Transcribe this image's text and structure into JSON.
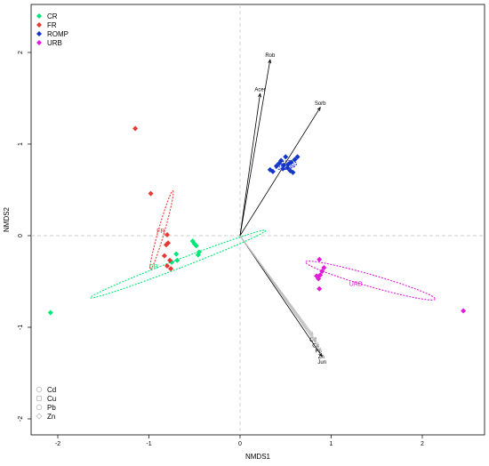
{
  "chart_data": {
    "type": "scatter",
    "title": "",
    "xlabel": "NMDS1",
    "ylabel": "NMDS2",
    "xlim": [
      -2.45,
      2.7
    ],
    "ylim": [
      -2.2,
      2.3
    ],
    "x_ticks": [
      -2,
      -1,
      0,
      1,
      2
    ],
    "y_ticks": [
      -2,
      -1,
      0,
      1,
      2
    ],
    "reference_lines": {
      "x": 0,
      "y": 0
    },
    "legend_position": "top-left",
    "series": [
      {
        "name": "CR",
        "color": "#00E676",
        "marker": "diamond",
        "points": [
          {
            "x": -2.08,
            "y": -0.84
          },
          {
            "x": -0.52,
            "y": -0.06
          },
          {
            "x": -0.5,
            "y": -0.09
          },
          {
            "x": -0.48,
            "y": -0.11
          },
          {
            "x": -0.7,
            "y": -0.2
          },
          {
            "x": -0.69,
            "y": -0.27
          },
          {
            "x": -0.45,
            "y": -0.18
          },
          {
            "x": -0.46,
            "y": -0.21
          },
          {
            "x": -0.75,
            "y": -0.29
          }
        ],
        "ellipse": {
          "cx": -0.68,
          "cy": -0.31,
          "semi_major": 1.03,
          "semi_minor": 0.047,
          "angle_deg": 21,
          "label": "CR",
          "label_x": -0.95,
          "label_y": -0.34
        }
      },
      {
        "name": "FR",
        "color": "#E53935",
        "marker": "diamond",
        "points": [
          {
            "x": -1.15,
            "y": 1.17
          },
          {
            "x": -0.98,
            "y": 0.46
          },
          {
            "x": -0.8,
            "y": 0.01
          },
          {
            "x": -0.79,
            "y": -0.08
          },
          {
            "x": -0.81,
            "y": -0.1
          },
          {
            "x": -0.83,
            "y": -0.22
          },
          {
            "x": -0.77,
            "y": -0.27
          },
          {
            "x": -0.8,
            "y": -0.33
          },
          {
            "x": -0.76,
            "y": -0.36
          }
        ],
        "ellipse": {
          "cx": -0.86,
          "cy": 0.06,
          "semi_major": 0.45,
          "semi_minor": 0.034,
          "angle_deg": 74,
          "label": "FR",
          "label_x": -0.87,
          "label_y": 0.05
        }
      },
      {
        "name": "ROMP",
        "color": "#1436C8",
        "marker": "diamond",
        "points": [
          {
            "x": 0.33,
            "y": 0.72
          },
          {
            "x": 0.36,
            "y": 0.7
          },
          {
            "x": 0.4,
            "y": 0.76
          },
          {
            "x": 0.45,
            "y": 0.82
          },
          {
            "x": 0.5,
            "y": 0.86
          },
          {
            "x": 0.53,
            "y": 0.78
          },
          {
            "x": 0.56,
            "y": 0.8
          },
          {
            "x": 0.6,
            "y": 0.83
          },
          {
            "x": 0.63,
            "y": 0.86
          },
          {
            "x": 0.47,
            "y": 0.73
          },
          {
            "x": 0.58,
            "y": 0.69
          },
          {
            "x": 0.52,
            "y": 0.74
          },
          {
            "x": 0.48,
            "y": 0.77
          },
          {
            "x": 0.43,
            "y": 0.79
          },
          {
            "x": 0.55,
            "y": 0.71
          }
        ],
        "ellipse": {
          "cx": 0.5,
          "cy": 0.77,
          "semi_major": 0.12,
          "semi_minor": 0.045,
          "angle_deg": 8,
          "label": "ROMP",
          "label_x": 0.5,
          "label_y": 0.76
        }
      },
      {
        "name": "URB",
        "color": "#E11BD6",
        "marker": "diamond",
        "points": [
          {
            "x": 2.45,
            "y": -0.82
          },
          {
            "x": 0.87,
            "y": -0.26
          },
          {
            "x": 0.92,
            "y": -0.35
          },
          {
            "x": 0.9,
            "y": -0.39
          },
          {
            "x": 0.88,
            "y": -0.43
          },
          {
            "x": 0.86,
            "y": -0.47
          },
          {
            "x": 0.84,
            "y": -0.44
          },
          {
            "x": 0.87,
            "y": -0.58
          }
        ],
        "ellipse": {
          "cx": 1.43,
          "cy": -0.49,
          "semi_major": 0.74,
          "semi_minor": 0.065,
          "angle_deg": -16,
          "label": "URB",
          "label_x": 1.27,
          "label_y": -0.53
        }
      }
    ],
    "vectors": [
      {
        "label": "Rob",
        "x": 0.33,
        "y": 1.92,
        "color": "#000000"
      },
      {
        "label": "Acer",
        "x": 0.22,
        "y": 1.55,
        "color": "#000000"
      },
      {
        "label": "Sorb",
        "x": 0.88,
        "y": 1.4,
        "color": "#000000"
      },
      {
        "label": "Jun",
        "x": 0.9,
        "y": -1.32,
        "color": "#000000"
      },
      {
        "label": "Cd",
        "x": 0.8,
        "y": -1.08,
        "color": "#BDBDBD"
      },
      {
        "label": "Cu",
        "x": 0.83,
        "y": -1.14,
        "color": "#BDBDBD"
      },
      {
        "label": "Pb",
        "x": 0.86,
        "y": -1.2,
        "color": "#BDBDBD"
      },
      {
        "label": "Zn",
        "x": 0.89,
        "y": -1.26,
        "color": "#BDBDBD"
      }
    ],
    "legend_species": [
      {
        "name": "CR",
        "color": "#00E676"
      },
      {
        "name": "FR",
        "color": "#E53935"
      },
      {
        "name": "ROMP",
        "color": "#1436C8"
      },
      {
        "name": "URB",
        "color": "#E11BD6"
      }
    ],
    "legend_metals": [
      {
        "name": "Cd",
        "marker": "circle"
      },
      {
        "name": "Cu",
        "marker": "square"
      },
      {
        "name": "Pb",
        "marker": "circle"
      },
      {
        "name": "Zn",
        "marker": "diamond"
      }
    ]
  }
}
